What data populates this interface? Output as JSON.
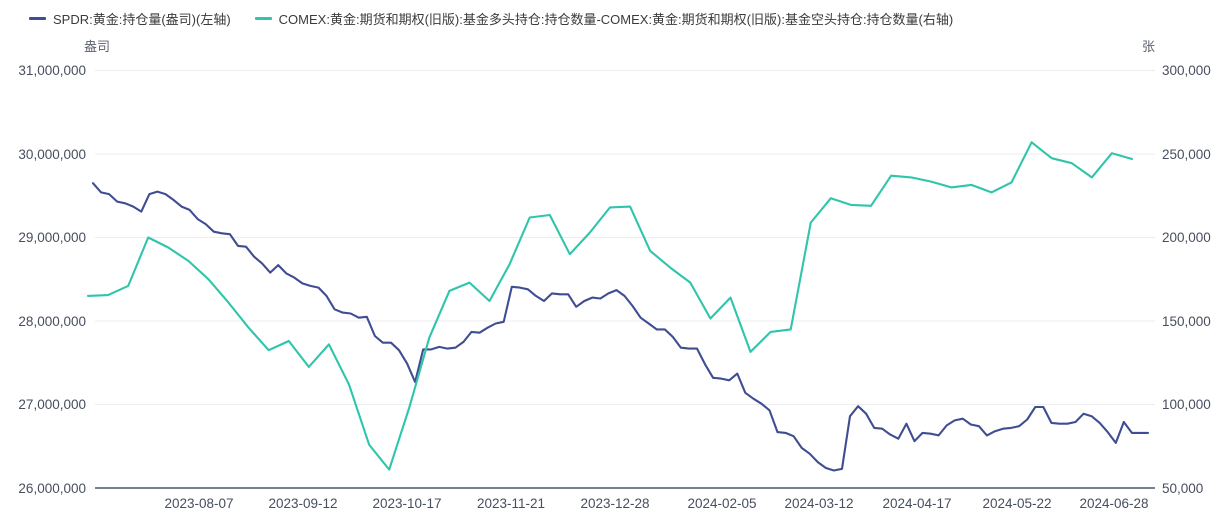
{
  "legend": [
    {
      "label": "SPDR:黄金:持仓量(盎司)(左轴)",
      "color": "#3F4D92"
    },
    {
      "label": "COMEX:黄金:期货和期权(旧版):基金多头持仓:持仓数量-COMEX:黄金:期货和期权(旧版):基金空头持仓:持仓数量(右轴)",
      "color": "#2FC5AB"
    }
  ],
  "left_axis": {
    "unit": "盎司",
    "tick_labels": [
      "31,000,000",
      "30,000,000",
      "29,000,000",
      "28,000,000",
      "27,000,000",
      "26,000,000"
    ]
  },
  "right_axis": {
    "unit": "张",
    "tick_labels": [
      "300,000",
      "250,000",
      "200,000",
      "150,000",
      "100,000",
      "50,000"
    ]
  },
  "x_axis": {
    "tick_labels": [
      "2023-08-07",
      "2023-09-12",
      "2023-10-17",
      "2023-11-21",
      "2023-12-28",
      "2024-02-05",
      "2024-03-12",
      "2024-04-17",
      "2024-05-22",
      "2024-06-28"
    ]
  },
  "colors": {
    "spdr_line": "#3F4D92",
    "comex_line": "#2FC5AB",
    "gridline": "#ECEDF1",
    "axis_line": "#49536E",
    "tick_text": "#474E5D",
    "background": "#FFFFFF"
  },
  "chart_data": {
    "type": "line",
    "title": "",
    "xlabel": "",
    "x_tick_labels": [
      "2023-08-07",
      "2023-09-12",
      "2023-10-17",
      "2023-11-21",
      "2023-12-28",
      "2024-02-05",
      "2024-03-12",
      "2024-04-17",
      "2024-05-22",
      "2024-06-28"
    ],
    "x_range": [
      "2023-07-03",
      "2024-06-28"
    ],
    "left_ylim_oz": [
      26000000,
      31000000
    ],
    "right_ylim_contracts": [
      50000,
      300000
    ],
    "grid": "horizontal-only",
    "legend_position": "top-left",
    "series": [
      {
        "name": "SPDR:黄金:持仓量(盎司)(左轴)",
        "axis": "left",
        "unit": "盎司",
        "frequency": "daily",
        "color": "#3F4D92",
        "values_million_oz": [
          29.65,
          29.54,
          29.52,
          29.43,
          29.41,
          29.37,
          29.31,
          29.52,
          29.55,
          29.52,
          29.45,
          29.37,
          29.33,
          29.22,
          29.16,
          29.07,
          29.05,
          29.04,
          28.9,
          28.89,
          28.77,
          28.69,
          28.58,
          28.67,
          28.57,
          28.52,
          28.45,
          28.42,
          28.4,
          28.3,
          28.14,
          28.1,
          28.09,
          28.04,
          28.05,
          27.82,
          27.74,
          27.74,
          27.65,
          27.49,
          27.27,
          27.66,
          27.66,
          27.69,
          27.67,
          27.68,
          27.75,
          27.87,
          27.86,
          27.92,
          27.97,
          27.99,
          28.41,
          28.4,
          28.38,
          28.3,
          28.24,
          28.33,
          28.32,
          28.32,
          28.17,
          28.24,
          28.28,
          28.27,
          28.33,
          28.37,
          28.3,
          28.18,
          28.04,
          27.97,
          27.9,
          27.9,
          27.81,
          27.68,
          27.67,
          27.67,
          27.48,
          27.32,
          27.31,
          27.29,
          27.37,
          27.14,
          27.07,
          27.01,
          26.93,
          26.67,
          26.66,
          26.62,
          26.48,
          26.41,
          26.31,
          26.24,
          26.21,
          26.23,
          26.86,
          26.98,
          26.89,
          26.72,
          26.71,
          26.64,
          26.59,
          26.77,
          26.56,
          26.66,
          26.65,
          26.63,
          26.75,
          26.81,
          26.83,
          26.76,
          26.74,
          26.63,
          26.68,
          26.71,
          26.72,
          26.74,
          26.82,
          26.97,
          26.97,
          26.78,
          26.77,
          26.77,
          26.79,
          26.89,
          26.86,
          26.78,
          26.67,
          26.54,
          26.79,
          26.66,
          26.66,
          26.66
        ]
      },
      {
        "name": "COMEX:黄金:期货和期权(旧版):基金多头持仓:持仓数量-COMEX:黄金:期货和期权(旧版):基金空头持仓:持仓数量(右轴)",
        "axis": "right",
        "unit": "张",
        "frequency": "weekly",
        "color": "#2FC5AB",
        "values_contracts": [
          165000,
          165500,
          171000,
          200000,
          194000,
          186000,
          175000,
          161000,
          146000,
          132500,
          138000,
          122500,
          136000,
          112000,
          76000,
          61000,
          98000,
          140000,
          168000,
          173000,
          162000,
          184000,
          212000,
          213500,
          190000,
          203000,
          218000,
          218500,
          192000,
          182000,
          173000,
          151500,
          164000,
          131500,
          143500,
          145000,
          209000,
          223500,
          219500,
          219000,
          237000,
          236000,
          233500,
          230000,
          231500,
          227000,
          233000,
          257000,
          247500,
          244500,
          236000,
          250500,
          247000
        ]
      }
    ]
  }
}
